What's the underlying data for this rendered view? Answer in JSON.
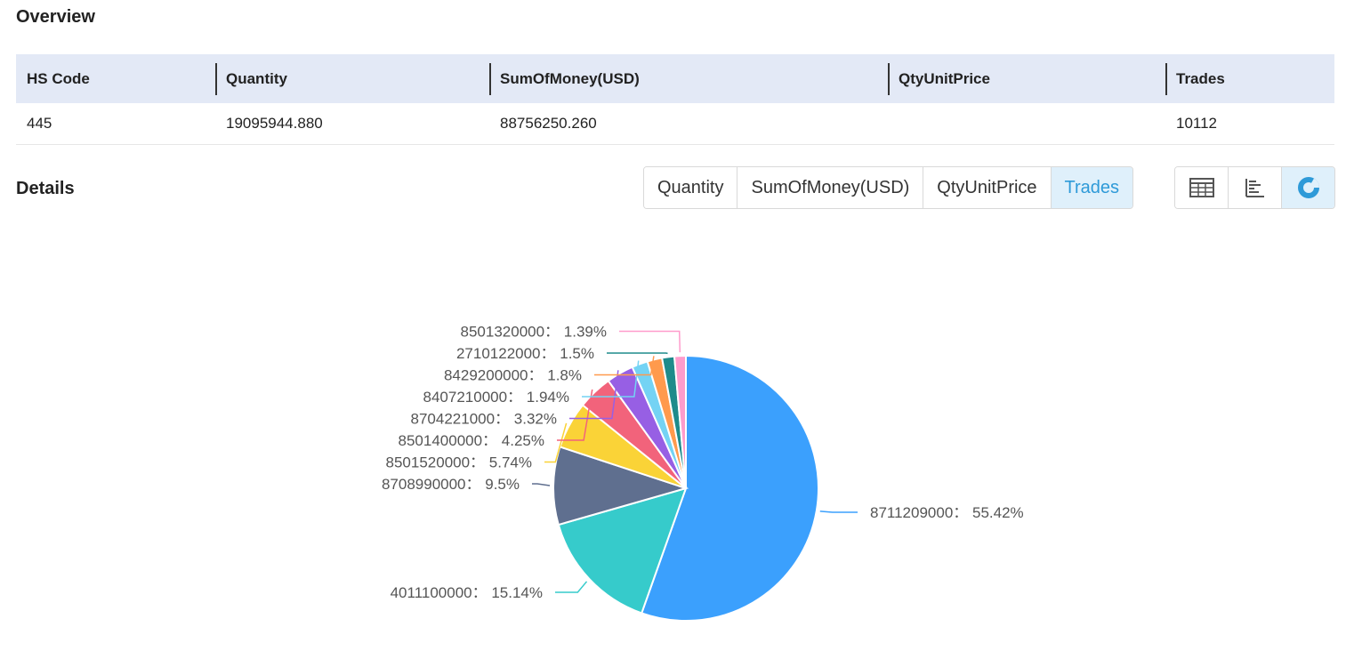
{
  "overview": {
    "title": "Overview",
    "headers": [
      "HS Code",
      "Quantity",
      "SumOfMoney(USD)",
      "QtyUnitPrice",
      "Trades"
    ],
    "row": [
      "445",
      "19095944.880",
      "88756250.260",
      "",
      "10112"
    ]
  },
  "details": {
    "title": "Details",
    "metric_tabs": [
      "Quantity",
      "SumOfMoney(USD)",
      "QtyUnitPrice",
      "Trades"
    ],
    "active_metric": "Trades",
    "view_tabs": [
      {
        "name": "table-view-icon"
      },
      {
        "name": "bar-chart-view-icon"
      },
      {
        "name": "pie-chart-view-icon",
        "active": true
      }
    ]
  },
  "colors": {
    "accent": "#2e9ad8",
    "header_bg": "#e3e9f6",
    "active_tab_bg": "#dff0fb"
  },
  "chart_data": {
    "type": "pie",
    "slices": [
      {
        "label": "8711209000",
        "value": 55.42,
        "color": "#3ba0fd"
      },
      {
        "label": "4011100000",
        "value": 15.14,
        "color": "#36cbcb"
      },
      {
        "label": "8708990000",
        "value": 9.5,
        "color": "#5f6f8f"
      },
      {
        "label": "8501520000",
        "value": 5.74,
        "color": "#fad337"
      },
      {
        "label": "8501400000",
        "value": 4.25,
        "color": "#f2637b"
      },
      {
        "label": "8704221000",
        "value": 3.32,
        "color": "#975fe4"
      },
      {
        "label": "8407210000",
        "value": 1.94,
        "color": "#74d3f4"
      },
      {
        "label": "8429200000",
        "value": 1.8,
        "color": "#ff9a4d"
      },
      {
        "label": "2710122000",
        "value": 1.5,
        "color": "#1e8b8b"
      },
      {
        "label": "8501320000",
        "value": 1.39,
        "color": "#ff9ccc"
      }
    ]
  }
}
